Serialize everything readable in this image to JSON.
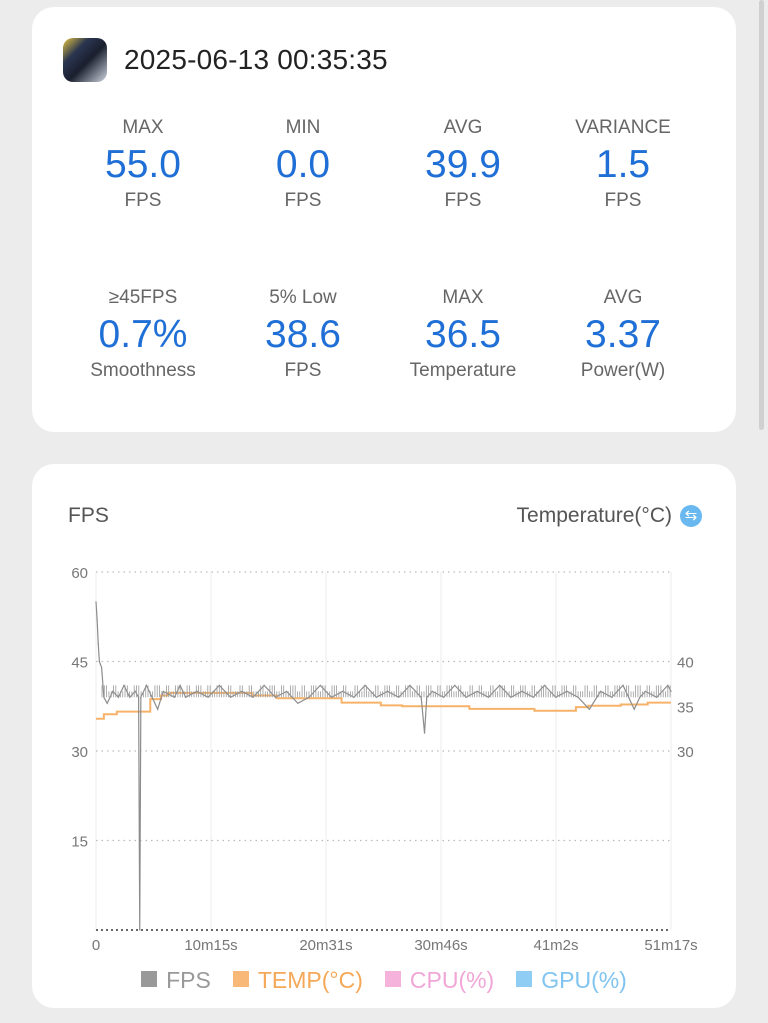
{
  "session": {
    "timestamp": "2025-06-13 00:35:35",
    "app_icon": "game-app-icon"
  },
  "stats": [
    {
      "label": "MAX",
      "value": "55.0",
      "unit": "FPS"
    },
    {
      "label": "MIN",
      "value": "0.0",
      "unit": "FPS"
    },
    {
      "label": "AVG",
      "value": "39.9",
      "unit": "FPS"
    },
    {
      "label": "VARIANCE",
      "value": "1.5",
      "unit": "FPS"
    },
    {
      "label": "≥45FPS",
      "value": "0.7%",
      "unit": "Smoothness"
    },
    {
      "label": "5% Low",
      "value": "38.6",
      "unit": "FPS"
    },
    {
      "label": "MAX",
      "value": "36.5",
      "unit": "Temperature"
    },
    {
      "label": "AVG",
      "value": "3.37",
      "unit": "Power(W)"
    }
  ],
  "colors": {
    "accent": "#1f6fd6",
    "fps": "#8c8c8c",
    "temp": "#f7b26a",
    "cpu": "#f5b3dc",
    "gpu": "#8fcdf5"
  },
  "chart_data": {
    "type": "line",
    "left_title": "FPS",
    "right_title": "Temperature(°C)",
    "switch_icon": "swap-icon",
    "xlabel_ticks": [
      "0",
      "10m15s",
      "20m31s",
      "30m46s",
      "41m2s",
      "51m17s"
    ],
    "xlim_minutes": [
      0,
      51.28
    ],
    "ylim_left": [
      0,
      60
    ],
    "yticks_left": [
      "60",
      "45",
      "30",
      "15"
    ],
    "ylim_right": [
      10,
      50
    ],
    "yticks_right": [
      "40",
      "35",
      "30"
    ],
    "yticks_right_values": [
      40,
      35,
      30
    ],
    "grid": true,
    "legend_position": "bottom",
    "legend": [
      "FPS",
      "TEMP(°C)",
      "CPU(%)",
      "GPU(%)"
    ],
    "series": [
      {
        "name": "FPS",
        "axis": "left",
        "points": [
          [
            0,
            55
          ],
          [
            0.1,
            52
          ],
          [
            0.2,
            48
          ],
          [
            0.3,
            45
          ],
          [
            0.5,
            44
          ],
          [
            0.7,
            39
          ],
          [
            1,
            38
          ],
          [
            1.5,
            40
          ],
          [
            2,
            39
          ],
          [
            2.5,
            41
          ],
          [
            3,
            39
          ],
          [
            3.5,
            40
          ],
          [
            3.8,
            39
          ],
          [
            3.9,
            0
          ],
          [
            4.0,
            39
          ],
          [
            4.5,
            41
          ],
          [
            5,
            39
          ],
          [
            5.5,
            37
          ],
          [
            6,
            40
          ],
          [
            7,
            39
          ],
          [
            7.5,
            41
          ],
          [
            8,
            39
          ],
          [
            9,
            40
          ],
          [
            10,
            39
          ],
          [
            11,
            41
          ],
          [
            12,
            39
          ],
          [
            13,
            40
          ],
          [
            14,
            39
          ],
          [
            15,
            41
          ],
          [
            16,
            39
          ],
          [
            17,
            40
          ],
          [
            18,
            38
          ],
          [
            19,
            39
          ],
          [
            20,
            41
          ],
          [
            21,
            39
          ],
          [
            22,
            40
          ],
          [
            23,
            39
          ],
          [
            24,
            41
          ],
          [
            25,
            39
          ],
          [
            26,
            40
          ],
          [
            27,
            39
          ],
          [
            28,
            41
          ],
          [
            29,
            39
          ],
          [
            29.3,
            33
          ],
          [
            29.5,
            39
          ],
          [
            30,
            40
          ],
          [
            31,
            39
          ],
          [
            32,
            41
          ],
          [
            33,
            39
          ],
          [
            34,
            40
          ],
          [
            35,
            39
          ],
          [
            36,
            41
          ],
          [
            37,
            39
          ],
          [
            38,
            40
          ],
          [
            39,
            39
          ],
          [
            40,
            41
          ],
          [
            41,
            39
          ],
          [
            42,
            40
          ],
          [
            43,
            39
          ],
          [
            44,
            37
          ],
          [
            45,
            40
          ],
          [
            46,
            39
          ],
          [
            47,
            41
          ],
          [
            48,
            37
          ],
          [
            48.5,
            39
          ],
          [
            49,
            40
          ],
          [
            50,
            39
          ],
          [
            51,
            41
          ],
          [
            51.28,
            40
          ]
        ]
      },
      {
        "name": "TEMP(°C)",
        "axis": "right",
        "steps": [
          [
            0,
            33.6
          ],
          [
            0.7,
            34.1
          ],
          [
            1.86,
            34.4
          ],
          [
            4.84,
            35.8
          ],
          [
            5.8,
            36.2
          ],
          [
            6.4,
            36.5
          ],
          [
            13.9,
            36.2
          ],
          [
            16.1,
            35.9
          ],
          [
            21.9,
            35.4
          ],
          [
            25.4,
            35.1
          ],
          [
            27.3,
            35.0
          ],
          [
            33.3,
            34.7
          ],
          [
            39.1,
            34.5
          ],
          [
            42.8,
            34.9
          ],
          [
            43.9,
            35.05
          ],
          [
            46.8,
            35.2
          ],
          [
            49.2,
            35.4
          ],
          [
            51.28,
            35.4
          ]
        ]
      },
      {
        "name": "CPU(%)",
        "points": []
      },
      {
        "name": "GPU(%)",
        "points": []
      }
    ]
  }
}
